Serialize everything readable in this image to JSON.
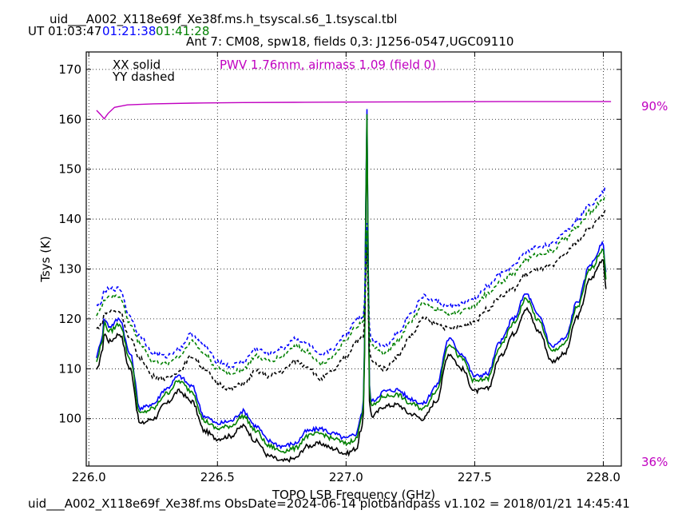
{
  "header": {
    "title": "uid___A002_X118e69f_Xe38f.ms.h_tsyscal.s6_1.tsyscal.tbl",
    "ut_label": "UT",
    "ut_times": [
      {
        "text": "01:03:47",
        "color": "#000000"
      },
      {
        "text": "01:21:38",
        "color": "#0000ff"
      },
      {
        "text": "01:41:28",
        "color": "#008000"
      }
    ],
    "subtitle": "Ant 7: CM08,  spw18,  fields 0,3: J1256-0547,UGC09110"
  },
  "legend": {
    "xx": "XX solid",
    "yy": "YY dashed",
    "pwv": "PWV 1.76mm, airmass 1.09 (field 0)"
  },
  "right_axis": {
    "top_label": "90%",
    "bottom_label": "36%",
    "color": "#c000c0"
  },
  "footer": "uid___A002_X118e69f_Xe38f.ms  ObsDate=2024-06-14   plotbandpass v1.102 = 2018/01/21 14:45:41",
  "chart_data": {
    "type": "line",
    "xlabel": "TOPO LSB Frequency (GHz)",
    "ylabel": "Tsys (K)",
    "xlim": [
      225.99,
      228.07
    ],
    "ylim": [
      90.5,
      173.5
    ],
    "xticks": [
      226.0,
      226.5,
      227.0,
      227.5,
      228.0
    ],
    "xtick_labels": [
      "226.0",
      "226.5",
      "227.0",
      "227.5",
      "228.0"
    ],
    "yticks": [
      100,
      110,
      120,
      130,
      140,
      150,
      160,
      170
    ],
    "grid": true,
    "base_curve": {
      "x": [
        226.03,
        226.05,
        226.06,
        226.08,
        226.12,
        226.16,
        226.2,
        226.25,
        226.3,
        226.35,
        226.4,
        226.45,
        226.5,
        226.55,
        226.6,
        226.65,
        226.7,
        226.75,
        226.8,
        226.85,
        226.9,
        226.95,
        227.0,
        227.04,
        227.06,
        227.08,
        227.1,
        227.15,
        227.2,
        227.25,
        227.3,
        227.35,
        227.4,
        227.45,
        227.5,
        227.55,
        227.6,
        227.65,
        227.7,
        227.75,
        227.8,
        227.85,
        227.9,
        227.95,
        228.0,
        228.01
      ],
      "y": [
        109.5,
        113.0,
        117.0,
        115.5,
        117.0,
        110.0,
        99.0,
        100.0,
        103.0,
        105.5,
        103.5,
        97.5,
        96.0,
        96.5,
        98.5,
        95.5,
        92.5,
        91.5,
        92.0,
        94.5,
        95.0,
        94.0,
        93.0,
        94.0,
        98.0,
        108.0,
        100.5,
        102.5,
        102.8,
        101.0,
        100.0,
        103.5,
        113.0,
        110.0,
        105.5,
        106.0,
        112.5,
        117.0,
        122.0,
        117.5,
        111.5,
        113.0,
        120.5,
        128.0,
        132.0,
        126.0
      ]
    },
    "spike": {
      "x": [
        227.07,
        227.075,
        227.08,
        227.085,
        227.09
      ],
      "y": [
        101.0,
        127.0,
        157.0,
        127.0,
        101.5
      ]
    },
    "yy_base_curve": {
      "x": [
        226.03,
        226.05,
        226.06,
        226.08,
        226.12,
        226.16,
        226.2,
        226.25,
        226.3,
        226.35,
        226.4,
        226.45,
        226.5,
        226.55,
        226.6,
        226.65,
        226.7,
        226.75,
        226.8,
        226.85,
        226.9,
        226.95,
        227.0,
        227.04,
        227.06,
        227.08,
        227.1,
        227.15,
        227.2,
        227.25,
        227.3,
        227.35,
        227.4,
        227.45,
        227.5,
        227.55,
        227.6,
        227.65,
        227.7,
        227.75,
        227.8,
        227.85,
        227.9,
        227.95,
        228.0,
        228.01
      ],
      "y": [
        118.0,
        119.0,
        121.0,
        121.5,
        121.5,
        116.0,
        112.0,
        108.5,
        108.0,
        109.5,
        112.5,
        110.0,
        107.0,
        106.0,
        107.0,
        109.5,
        108.5,
        109.5,
        111.5,
        110.5,
        108.0,
        109.5,
        112.5,
        115.5,
        116.0,
        117.0,
        111.5,
        110.0,
        112.5,
        116.5,
        120.0,
        119.0,
        118.0,
        118.5,
        119.5,
        122.0,
        124.5,
        126.0,
        129.0,
        130.0,
        130.5,
        133.0,
        135.5,
        138.5,
        141.0,
        141.5
      ]
    },
    "series": [
      {
        "pol": "XX",
        "time": "01:03:47",
        "color": "#000000",
        "dash": "solid",
        "offset": 0
      },
      {
        "pol": "XX",
        "time": "01:21:38",
        "color": "#0000ff",
        "dash": "solid",
        "offset": 3.0
      },
      {
        "pol": "XX",
        "time": "01:41:28",
        "color": "#008000",
        "dash": "solid",
        "offset": 2.0
      },
      {
        "pol": "YY",
        "time": "01:03:47",
        "color": "#000000",
        "dash": "dashed",
        "offset": 0
      },
      {
        "pol": "YY",
        "time": "01:21:38",
        "color": "#0000ff",
        "dash": "dashed",
        "offset": 4.5
      },
      {
        "pol": "YY",
        "time": "01:41:28",
        "color": "#008000",
        "dash": "dashed",
        "offset": 3.0
      }
    ],
    "transmission": {
      "color": "#c000c0",
      "x": [
        226.03,
        226.045,
        226.06,
        226.075,
        226.1,
        226.15,
        226.25,
        226.4,
        226.6,
        226.8,
        227.0,
        227.3,
        227.6,
        227.9,
        228.03
      ],
      "y": [
        161.8,
        161.0,
        160.1,
        161.2,
        162.4,
        162.9,
        163.1,
        163.25,
        163.35,
        163.4,
        163.45,
        163.5,
        163.55,
        163.55,
        163.55
      ]
    }
  }
}
